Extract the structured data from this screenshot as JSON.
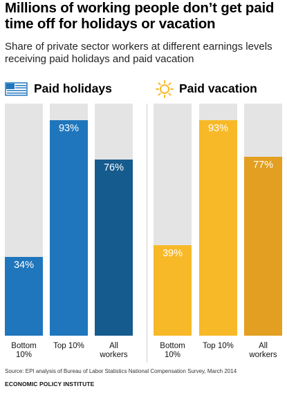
{
  "title": "Millions of working people don’t get paid time off for holidays or vacation",
  "subtitle": "Share of private sector workers at different earnings levels receiving paid holidays and paid vacation",
  "source": "Source: EPI analysis of Bureau of Labor Statistics National Compensation Survey, March 2014",
  "organization": "ECONOMIC POLICY INSTITUTE",
  "chart_data": [
    {
      "type": "bar",
      "title": "Paid holidays",
      "icon": "flag-icon",
      "categories": [
        "Bottom 10%",
        "Top 10%",
        "All workers"
      ],
      "values": [
        34,
        93,
        76
      ],
      "value_labels": [
        "34%",
        "93%",
        "76%"
      ],
      "colors": [
        "#1f76bd",
        "#1f76bd",
        "#165b8e"
      ],
      "ylim": [
        0,
        100
      ],
      "grid": false
    },
    {
      "type": "bar",
      "title": "Paid vacation",
      "icon": "sun-icon",
      "categories": [
        "Bottom 10%",
        "Top 10%",
        "All workers"
      ],
      "values": [
        39,
        93,
        77
      ],
      "value_labels": [
        "39%",
        "93%",
        "77%"
      ],
      "colors": [
        "#f7b928",
        "#f7b928",
        "#e29f22"
      ],
      "ylim": [
        0,
        100
      ],
      "grid": false
    }
  ]
}
